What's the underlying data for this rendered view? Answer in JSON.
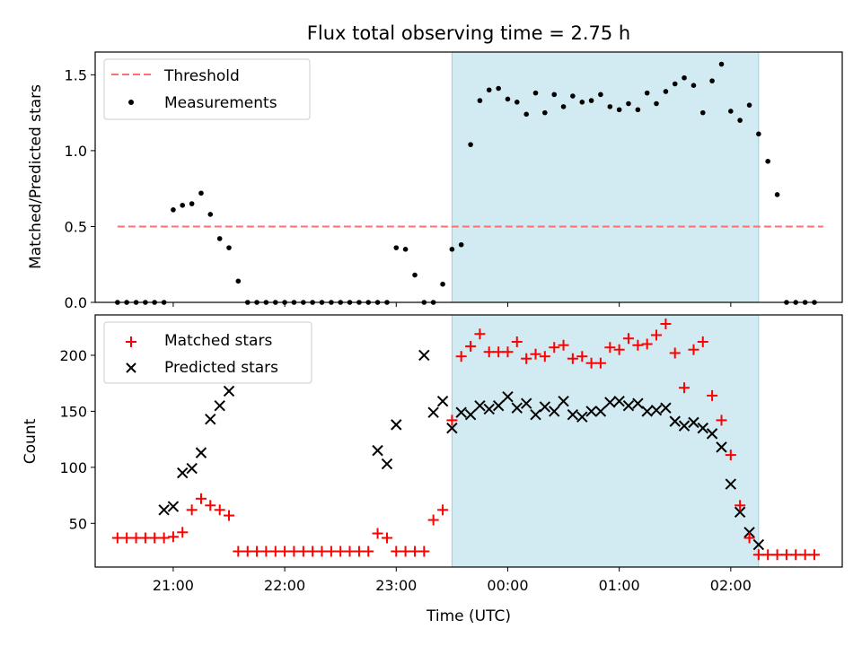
{
  "chart_data": [
    {
      "type": "scatter",
      "title": "Flux total observing time = 2.75 h",
      "ylabel": "Matched/Predicted stars",
      "xlabel": "",
      "ylim": [
        0,
        1.65
      ],
      "xlim_hours": [
        20.3,
        27.0
      ],
      "yticks": [
        0.0,
        0.5,
        1.0,
        1.5
      ],
      "ytick_labels": [
        "0.0",
        "0.5",
        "1.0",
        "1.5"
      ],
      "shaded_range": [
        "23:30",
        "02:15"
      ],
      "shade_color": "#add8e6",
      "legend_position": "upper-left",
      "legend": [
        {
          "label": "Threshold",
          "color": "#ff6f6f",
          "marker": "dashed-line"
        },
        {
          "label": "Measurements",
          "color": "#000000",
          "marker": "dot"
        }
      ],
      "series": [
        {
          "name": "Threshold",
          "kind": "line",
          "x_hours": [
            20.5,
            26.83
          ],
          "y": [
            0.5,
            0.5
          ]
        },
        {
          "name": "Measurements",
          "kind": "points",
          "x_hours": [
            20.5,
            20.583,
            20.667,
            20.75,
            20.833,
            20.917,
            21.0,
            21.083,
            21.167,
            21.25,
            21.333,
            21.417,
            21.5,
            21.583,
            21.667,
            21.75,
            21.833,
            21.917,
            22.0,
            22.083,
            22.167,
            22.25,
            22.333,
            22.417,
            22.5,
            22.583,
            22.667,
            22.75,
            22.833,
            22.917,
            23.0,
            23.083,
            23.167,
            23.25,
            23.333,
            23.417,
            23.5,
            23.583,
            23.667,
            23.75,
            23.833,
            23.917,
            24.0,
            24.083,
            24.167,
            24.25,
            24.333,
            24.417,
            24.5,
            24.583,
            24.667,
            24.75,
            24.833,
            24.917,
            25.0,
            25.083,
            25.167,
            25.25,
            25.333,
            25.417,
            25.5,
            25.583,
            25.667,
            25.75,
            25.833,
            25.917,
            26.0,
            26.083,
            26.167,
            26.25,
            26.333,
            26.417,
            26.5,
            26.583,
            26.667,
            26.75
          ],
          "y": [
            0,
            0,
            0,
            0,
            0,
            0,
            0.61,
            0.64,
            0.65,
            0.72,
            0.58,
            0.42,
            0.36,
            0.14,
            0,
            0,
            0,
            0,
            0,
            0,
            0,
            0,
            0,
            0,
            0,
            0,
            0,
            0,
            0,
            0,
            0.36,
            0.35,
            0.18,
            0,
            0,
            0.12,
            0.35,
            0.38,
            1.04,
            1.33,
            1.4,
            1.41,
            1.34,
            1.32,
            1.24,
            1.38,
            1.25,
            1.37,
            1.29,
            1.36,
            1.32,
            1.33,
            1.37,
            1.29,
            1.27,
            1.31,
            1.27,
            1.38,
            1.31,
            1.39,
            1.44,
            1.48,
            1.43,
            1.25,
            1.46,
            1.57,
            1.26,
            1.2,
            1.3,
            1.11,
            0.93,
            0.71,
            0,
            0,
            0,
            0
          ]
        }
      ]
    },
    {
      "type": "scatter",
      "title": "",
      "ylabel": "Count",
      "xlabel": "Time (UTC)",
      "ylim": [
        11,
        236
      ],
      "xlim_hours": [
        20.3,
        27.0
      ],
      "yticks": [
        50,
        100,
        150,
        200
      ],
      "ytick_labels": [
        "50",
        "100",
        "150",
        "200"
      ],
      "xticks_hours": [
        21,
        22,
        23,
        24,
        25,
        26
      ],
      "xtick_labels": [
        "21:00",
        "22:00",
        "23:00",
        "00:00",
        "01:00",
        "02:00"
      ],
      "shaded_range": [
        "23:30",
        "02:15"
      ],
      "shade_color": "#add8e6",
      "legend_position": "upper-left",
      "legend": [
        {
          "label": "Matched stars",
          "color": "#ff0000",
          "marker": "plus"
        },
        {
          "label": "Predicted stars",
          "color": "#000000",
          "marker": "x"
        }
      ],
      "series": [
        {
          "name": "Matched stars",
          "kind": "points",
          "x_hours": [
            20.5,
            20.583,
            20.667,
            20.75,
            20.833,
            20.917,
            21.0,
            21.083,
            21.167,
            21.25,
            21.333,
            21.417,
            21.5,
            21.583,
            21.667,
            21.75,
            21.833,
            21.917,
            22.0,
            22.083,
            22.167,
            22.25,
            22.333,
            22.417,
            22.5,
            22.583,
            22.667,
            22.75,
            22.833,
            22.917,
            23.0,
            23.083,
            23.167,
            23.25,
            23.333,
            23.417,
            23.5,
            23.583,
            23.667,
            23.75,
            23.833,
            23.917,
            24.0,
            24.083,
            24.167,
            24.25,
            24.333,
            24.417,
            24.5,
            24.583,
            24.667,
            24.75,
            24.833,
            24.917,
            25.0,
            25.083,
            25.167,
            25.25,
            25.333,
            25.417,
            25.5,
            25.583,
            25.667,
            25.75,
            25.833,
            25.917,
            26.0,
            26.083,
            26.167,
            26.25,
            26.333,
            26.417,
            26.5,
            26.583,
            26.667,
            26.75
          ],
          "y": [
            37,
            37,
            37,
            37,
            37,
            37,
            38,
            42,
            62,
            72,
            66,
            62,
            57,
            25,
            25,
            25,
            25,
            25,
            25,
            25,
            25,
            25,
            25,
            25,
            25,
            25,
            25,
            25,
            41,
            37,
            25,
            25,
            25,
            25,
            53,
            62,
            142,
            199,
            208,
            219,
            203,
            203,
            203,
            212,
            197,
            201,
            199,
            207,
            209,
            197,
            199,
            193,
            193,
            207,
            205,
            215,
            209,
            210,
            218,
            228,
            202,
            171,
            205,
            212,
            164,
            142,
            111,
            66,
            37,
            22,
            22,
            22,
            22,
            22,
            22,
            22
          ]
        },
        {
          "name": "Predicted stars",
          "kind": "points",
          "x_hours": [
            20.917,
            21.0,
            21.083,
            21.167,
            21.25,
            21.333,
            21.417,
            21.5,
            22.833,
            22.917,
            23.0,
            23.25,
            23.333,
            23.417,
            23.5,
            23.583,
            23.667,
            23.75,
            23.833,
            23.917,
            24.0,
            24.083,
            24.167,
            24.25,
            24.333,
            24.417,
            24.5,
            24.583,
            24.667,
            24.75,
            24.833,
            24.917,
            25.0,
            25.083,
            25.167,
            25.25,
            25.333,
            25.417,
            25.5,
            25.583,
            25.667,
            25.75,
            25.833,
            25.917,
            26.0,
            26.083,
            26.167,
            26.25
          ],
          "y": [
            62,
            65,
            95,
            99,
            113,
            143,
            155,
            168,
            115,
            103,
            138,
            200,
            149,
            159,
            135,
            149,
            147,
            155,
            152,
            155,
            163,
            153,
            157,
            147,
            154,
            150,
            159,
            147,
            145,
            150,
            150,
            158,
            159,
            155,
            157,
            150,
            151,
            153,
            141,
            137,
            140,
            135,
            130,
            118,
            85,
            60,
            42,
            31
          ]
        }
      ]
    }
  ]
}
